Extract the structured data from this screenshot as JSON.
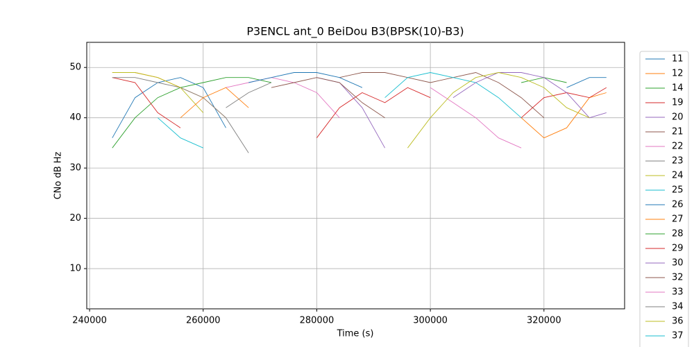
{
  "chart_data": {
    "type": "line",
    "title": "P3ENCL ant_0 BeiDou B3(BPSK(10)-B3)",
    "x_label": "Time (s)",
    "y_label": "CNo dB Hz",
    "x": [
      244000,
      248000,
      252000,
      256000,
      260000,
      264000,
      268000,
      272000,
      276000,
      280000,
      284000,
      288000,
      292000,
      296000,
      300000,
      304000,
      308000,
      312000,
      316000,
      320000,
      324000,
      328000,
      331000
    ],
    "xlim": [
      239500,
      334200
    ],
    "xticks": [
      240000,
      260000,
      280000,
      300000,
      320000
    ],
    "ylim": [
      2,
      55
    ],
    "yticks": [
      10,
      20,
      30,
      40,
      50
    ],
    "grid": true,
    "series": [
      {
        "name": "11",
        "color": "#1f77b4",
        "values": [
          36,
          44,
          47,
          48,
          46,
          38,
          null,
          null,
          null,
          null,
          null,
          null,
          null,
          null,
          null,
          null,
          null,
          null,
          null,
          null,
          null,
          null,
          null
        ]
      },
      {
        "name": "12",
        "color": "#ff7f0e",
        "values": [
          49,
          49,
          48,
          46,
          44,
          40,
          null,
          null,
          null,
          null,
          null,
          null,
          null,
          null,
          null,
          null,
          null,
          null,
          null,
          null,
          null,
          null,
          null
        ]
      },
      {
        "name": "14",
        "color": "#2ca02c",
        "values": [
          34,
          40,
          44,
          46,
          47,
          48,
          48,
          47,
          null,
          null,
          null,
          null,
          null,
          null,
          null,
          null,
          null,
          null,
          null,
          null,
          null,
          null,
          null
        ]
      },
      {
        "name": "19",
        "color": "#d62728",
        "values": [
          48,
          47,
          41,
          38,
          null,
          null,
          null,
          null,
          null,
          null,
          null,
          null,
          null,
          null,
          null,
          null,
          null,
          null,
          null,
          null,
          null,
          null,
          null
        ]
      },
      {
        "name": "20",
        "color": "#9467bd",
        "values": [
          null,
          null,
          null,
          null,
          null,
          null,
          null,
          null,
          null,
          48,
          47,
          42,
          34,
          null,
          null,
          null,
          null,
          null,
          null,
          null,
          null,
          null,
          null
        ]
      },
      {
        "name": "21",
        "color": "#8c564b",
        "values": [
          null,
          null,
          null,
          null,
          null,
          null,
          null,
          null,
          null,
          null,
          48,
          49,
          49,
          48,
          47,
          48,
          49,
          47,
          44,
          40,
          null,
          null,
          null
        ]
      },
      {
        "name": "22",
        "color": "#e377c2",
        "values": [
          null,
          null,
          null,
          null,
          null,
          46,
          47,
          48,
          47,
          45,
          40,
          null,
          null,
          null,
          null,
          null,
          null,
          null,
          null,
          null,
          null,
          null,
          null
        ]
      },
      {
        "name": "23",
        "color": "#7f7f7f",
        "values": [
          48,
          48,
          47,
          46,
          44,
          40,
          33,
          null,
          null,
          null,
          null,
          null,
          null,
          null,
          null,
          null,
          null,
          null,
          null,
          null,
          null,
          null,
          null
        ]
      },
      {
        "name": "24",
        "color": "#bcbd22",
        "values": [
          49,
          49,
          48,
          46,
          41,
          null,
          null,
          null,
          null,
          null,
          null,
          null,
          null,
          null,
          null,
          null,
          null,
          null,
          null,
          null,
          null,
          null,
          null
        ]
      },
      {
        "name": "25",
        "color": "#17becf",
        "values": [
          null,
          null,
          null,
          null,
          null,
          null,
          null,
          null,
          null,
          null,
          null,
          null,
          44,
          48,
          49,
          48,
          47,
          44,
          40,
          null,
          null,
          null,
          null
        ]
      },
      {
        "name": "26",
        "color": "#1f77b4",
        "values": [
          null,
          null,
          null,
          null,
          null,
          null,
          47,
          48,
          49,
          49,
          48,
          46,
          null,
          null,
          null,
          null,
          null,
          null,
          null,
          null,
          46,
          48,
          48
        ]
      },
      {
        "name": "27",
        "color": "#ff7f0e",
        "values": [
          null,
          null,
          null,
          40,
          44,
          46,
          42,
          null,
          null,
          null,
          null,
          null,
          null,
          null,
          null,
          null,
          null,
          null,
          40,
          36,
          38,
          44,
          45
        ]
      },
      {
        "name": "28",
        "color": "#2ca02c",
        "values": [
          null,
          null,
          null,
          null,
          null,
          null,
          null,
          null,
          null,
          null,
          null,
          null,
          null,
          null,
          null,
          null,
          null,
          null,
          47,
          48,
          47,
          null,
          null
        ]
      },
      {
        "name": "29",
        "color": "#d62728",
        "values": [
          null,
          null,
          null,
          null,
          null,
          null,
          null,
          null,
          null,
          36,
          42,
          45,
          43,
          46,
          44,
          null,
          null,
          null,
          40,
          44,
          45,
          44,
          46
        ]
      },
      {
        "name": "30",
        "color": "#9467bd",
        "values": [
          null,
          null,
          null,
          null,
          null,
          null,
          null,
          null,
          null,
          null,
          null,
          null,
          null,
          null,
          null,
          44,
          47,
          49,
          49,
          48,
          45,
          40,
          41
        ]
      },
      {
        "name": "32",
        "color": "#8c564b",
        "values": [
          null,
          null,
          null,
          null,
          null,
          null,
          null,
          46,
          47,
          48,
          47,
          43,
          40,
          null,
          null,
          null,
          null,
          null,
          null,
          null,
          null,
          null,
          null
        ]
      },
      {
        "name": "33",
        "color": "#e377c2",
        "values": [
          null,
          null,
          null,
          null,
          null,
          null,
          null,
          null,
          null,
          null,
          null,
          null,
          null,
          null,
          46,
          43,
          40,
          36,
          34,
          null,
          null,
          null,
          null
        ]
      },
      {
        "name": "34",
        "color": "#7f7f7f",
        "values": [
          null,
          null,
          null,
          null,
          null,
          42,
          45,
          47,
          null,
          null,
          null,
          null,
          null,
          null,
          null,
          null,
          null,
          null,
          null,
          null,
          null,
          null,
          null
        ]
      },
      {
        "name": "36",
        "color": "#bcbd22",
        "values": [
          null,
          null,
          null,
          null,
          null,
          null,
          null,
          null,
          null,
          null,
          null,
          null,
          null,
          34,
          40,
          45,
          48,
          49,
          48,
          46,
          42,
          40,
          null
        ]
      },
      {
        "name": "37",
        "color": "#17becf",
        "values": [
          null,
          null,
          40,
          36,
          34,
          null,
          null,
          null,
          null,
          null,
          null,
          null,
          null,
          null,
          null,
          null,
          null,
          null,
          null,
          null,
          null,
          null,
          null
        ]
      }
    ]
  }
}
